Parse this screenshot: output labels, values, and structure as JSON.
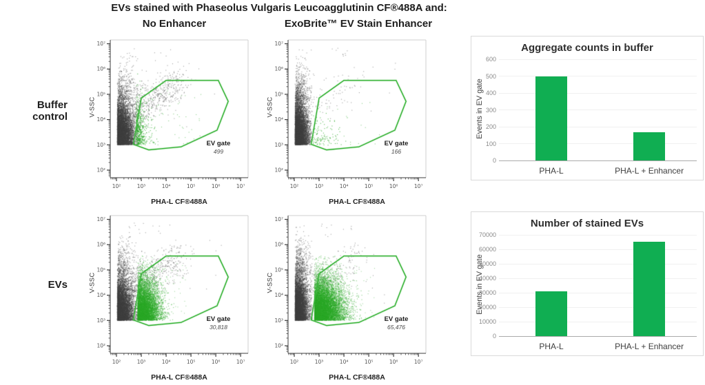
{
  "title": "EVs stained with Phaseolus Vulgaris Leucoagglutinin CF®488A and:",
  "columns": [
    "No Enhancer",
    "ExoBrite™ EV Stain Enhancer"
  ],
  "rows": [
    "Buffer control",
    "EVs"
  ],
  "flow_axis": {
    "x": "PHA-L CF®488A",
    "y": "V-SSC",
    "scale": "log10",
    "decades": [
      2,
      3,
      4,
      5,
      6,
      7
    ],
    "tick_labels": [
      "10²",
      "10³",
      "10⁴",
      "10⁵",
      "10⁶",
      "10⁷"
    ]
  },
  "gate": {
    "label": "EV gate",
    "polygon_log10": [
      [
        2.68,
        3.02
      ],
      [
        3.0,
        4.85
      ],
      [
        4.0,
        5.55
      ],
      [
        6.1,
        5.55
      ],
      [
        6.5,
        4.72
      ],
      [
        6.05,
        3.58
      ],
      [
        4.6,
        2.92
      ],
      [
        3.3,
        2.8
      ]
    ]
  },
  "colors": {
    "bar_green": "#10ae52",
    "gate_green": "#3cb53c",
    "dot_green": "#2aa727",
    "dot_grey": "#3f3f3f",
    "panel_border": "#d9d9d9",
    "grid": "#f0f0f0",
    "axis_dark": "#3c3c3c",
    "frame_grey": "#cfcfcf",
    "tick_text": "#555555"
  },
  "chart_data": [
    {
      "type": "scatter",
      "id": "flow-buffer-no-enhancer",
      "row": "Buffer control",
      "column": "No Enhancer",
      "xlabel": "PHA-L CF®488A",
      "ylabel": "V-SSC",
      "xscale": "log",
      "yscale": "log",
      "xlim": [
        100,
        10000000
      ],
      "ylim": [
        100,
        10000000
      ],
      "gate_label": "EV gate",
      "events_in_gate": 499,
      "gate_count_text": "499",
      "populations": {
        "grey": {
          "core": 6500,
          "xs": 0.3,
          "xmax": 2.85,
          "halo": 300,
          "tail": 550,
          "stray": 10
        },
        "green": {
          "mode": "edge",
          "n": 480
        }
      }
    },
    {
      "type": "scatter",
      "id": "flow-buffer-enhancer",
      "row": "Buffer control",
      "column": "ExoBrite™ EV Stain Enhancer",
      "xlabel": "PHA-L CF®488A",
      "ylabel": "V-SSC",
      "xscale": "log",
      "yscale": "log",
      "xlim": [
        100,
        10000000
      ],
      "ylim": [
        100,
        10000000
      ],
      "gate_label": "EV gate",
      "events_in_gate": 166,
      "gate_count_text": "166",
      "populations": {
        "grey": {
          "core": 6500,
          "xs": 0.24,
          "xmax": 2.68,
          "halo": 380,
          "tail": 70,
          "stray": 8
        },
        "green": {
          "mode": "edge-sparse",
          "n": 110
        }
      }
    },
    {
      "type": "scatter",
      "id": "flow-evs-no-enhancer",
      "row": "EVs",
      "column": "No Enhancer",
      "xlabel": "PHA-L CF®488A",
      "ylabel": "V-SSC",
      "xscale": "log",
      "yscale": "log",
      "xlim": [
        100,
        10000000
      ],
      "ylim": [
        100,
        10000000
      ],
      "gate_label": "EV gate",
      "events_in_gate": 30818,
      "gate_count_text": "30,818",
      "populations": {
        "grey": {
          "core": 5800,
          "xs": 0.3,
          "xmax": 2.85,
          "halo": 280,
          "tail": 450,
          "stray": 8
        },
        "green": {
          "mode": "blob",
          "n": 6200,
          "mu": 2.84,
          "xs": 0.42,
          "xmax": 4.35
        }
      }
    },
    {
      "type": "scatter",
      "id": "flow-evs-enhancer",
      "row": "EVs",
      "column": "ExoBrite™ EV Stain Enhancer",
      "xlabel": "PHA-L CF®488A",
      "ylabel": "V-SSC",
      "xscale": "log",
      "yscale": "log",
      "xlim": [
        100,
        10000000
      ],
      "ylim": [
        100,
        10000000
      ],
      "gate_label": "EV gate",
      "events_in_gate": 65476,
      "gate_count_text": "65,476",
      "populations": {
        "grey": {
          "core": 6200,
          "xs": 0.24,
          "xmax": 2.72,
          "halo": 420,
          "tail": 180,
          "stray": 8
        },
        "green": {
          "mode": "blob",
          "n": 8500,
          "mu": 2.8,
          "xs": 0.55,
          "xmax": 4.75
        }
      }
    },
    {
      "type": "bar",
      "id": "bar-aggregate-counts",
      "title": "Aggregate counts in buffer",
      "ylabel": "Events in EV gate",
      "xlabel": "",
      "categories": [
        "PHA-L",
        "PHA-L + Enhancer"
      ],
      "values": [
        499,
        166
      ],
      "ylim": [
        0,
        600
      ],
      "ytick_step": 100,
      "grid": true,
      "legend": "none"
    },
    {
      "type": "bar",
      "id": "bar-stained-evs",
      "title": "Number of stained EVs",
      "ylabel": "Events in EV gate",
      "xlabel": "",
      "categories": [
        "PHA-L",
        "PHA-L + Enhancer"
      ],
      "values": [
        30818,
        65476
      ],
      "ylim": [
        0,
        70000
      ],
      "ytick_step": 10000,
      "grid": true,
      "legend": "none"
    }
  ]
}
